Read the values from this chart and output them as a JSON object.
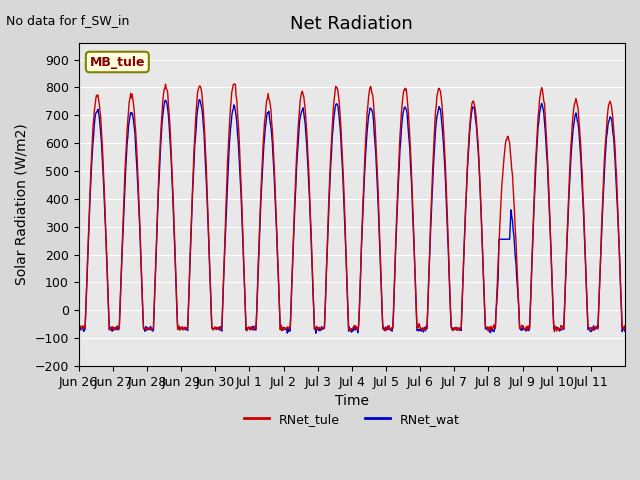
{
  "title": "Net Radiation",
  "subtitle": "No data for f_SW_in",
  "ylabel": "Solar Radiation (W/m2)",
  "xlabel": "Time",
  "ylim": [
    -200,
    960
  ],
  "yticks": [
    -200,
    -100,
    0,
    100,
    200,
    300,
    400,
    500,
    600,
    700,
    800,
    900
  ],
  "background_color": "#e8e8e8",
  "plot_bg_color": "#e8e8e8",
  "line_color_tule": "#cc0000",
  "line_color_wat": "#0000cc",
  "legend_label_tule": "RNet_tule",
  "legend_label_wat": "RNet_wat",
  "station_label": "MB_tule",
  "x_tick_labels": [
    "Jun 26",
    "Jun 27",
    "Jun 28",
    "Jun 29",
    "Jun 30",
    "Jul 1",
    "Jul 2",
    "Jul 3",
    "Jul 4",
    "Jul 5",
    "Jul 6",
    "Jul 7",
    "Jul 8",
    "Jul 9",
    "Jul 10",
    "Jul 11"
  ],
  "n_days": 16,
  "samples_per_day": 48,
  "day_peaks_tule": [
    775,
    775,
    805,
    810,
    815,
    770,
    780,
    800,
    800,
    800,
    800,
    750,
    620,
    790,
    755,
    750
  ],
  "day_peaks_wat": [
    720,
    710,
    750,
    755,
    730,
    710,
    720,
    740,
    730,
    730,
    725,
    730,
    410,
    735,
    700,
    695
  ],
  "night_min": -75,
  "night_min_wat": -80,
  "title_fontsize": 13,
  "label_fontsize": 10,
  "tick_fontsize": 9
}
